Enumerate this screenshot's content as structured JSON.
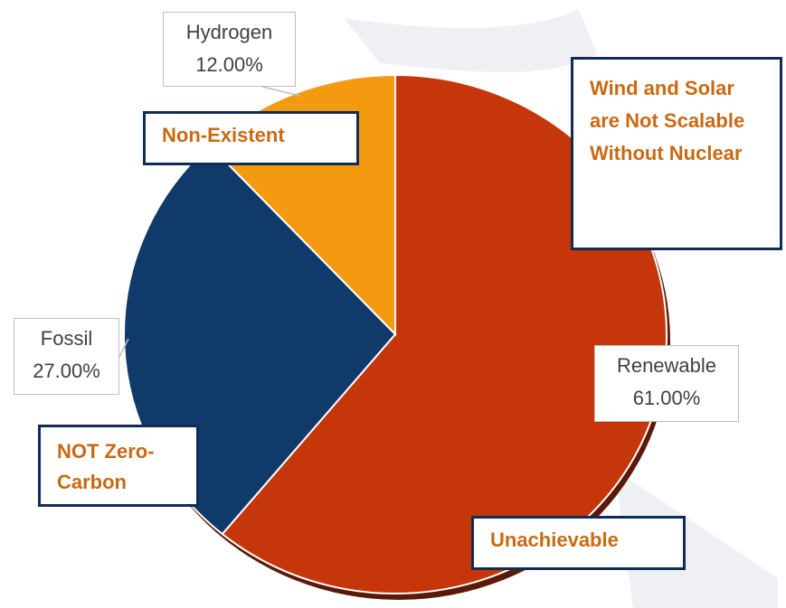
{
  "chart_data": {
    "type": "pie",
    "categories": [
      "Renewable",
      "Fossil",
      "Hydrogen"
    ],
    "values": [
      61,
      27,
      12
    ],
    "value_labels": [
      "61.00%",
      "27.00%",
      "12.00%"
    ],
    "colors": [
      "#c5370b",
      "#0f3a6a",
      "#f39a11"
    ],
    "annotations": [
      "Non-Existent",
      "Wind and Solar are Not Scalable Without Nuclear",
      "NOT Zero-Carbon",
      "Unachievable"
    ]
  }
}
